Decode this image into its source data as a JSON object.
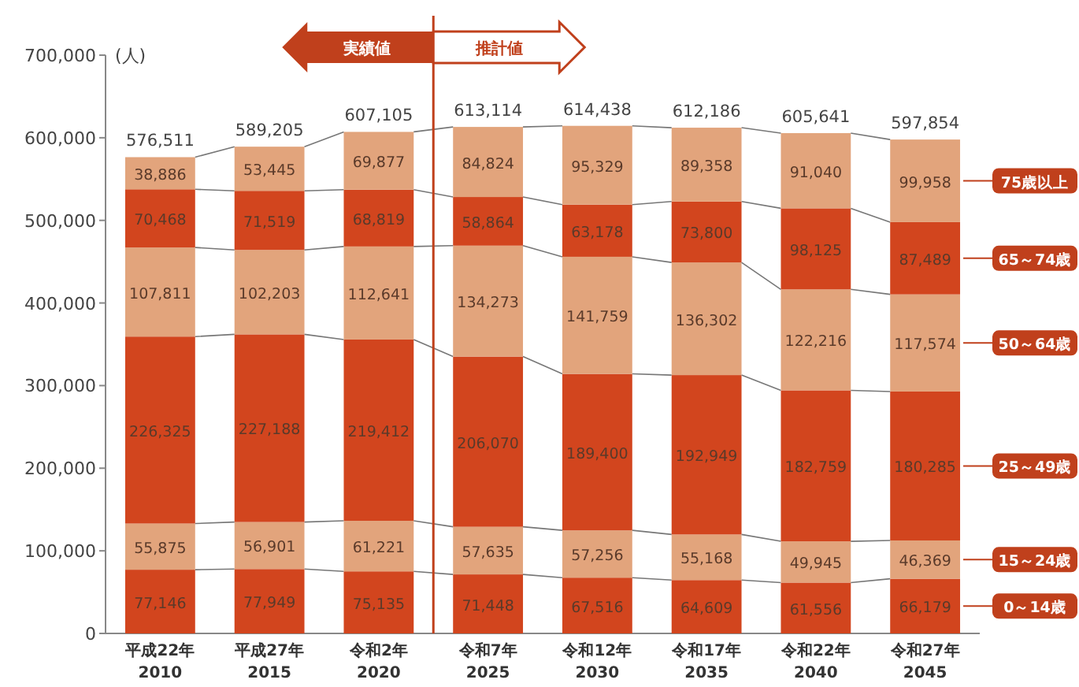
{
  "chart_data": {
    "type": "bar",
    "stacked": true,
    "ylabel": "(人)",
    "categories": [
      "平成22年\n2010",
      "平成27年\n2015",
      "令和2年\n2020",
      "令和7年\n2025",
      "令和12年\n2030",
      "令和17年\n2035",
      "令和22年\n2040",
      "令和27年\n2045"
    ],
    "series": [
      {
        "name": "0～14歳",
        "color": "#d2451e",
        "values": [
          77146,
          77949,
          75135,
          71448,
          67516,
          64609,
          61556,
          66179
        ],
        "value_labels": [
          "77,146",
          "77,949",
          "75,135",
          "71,448",
          "67,516",
          "64,609",
          "61,556",
          "66,179"
        ]
      },
      {
        "name": "15～24歳",
        "color": "#e2a47c",
        "values": [
          55875,
          56901,
          61221,
          57635,
          57256,
          55168,
          49945,
          46369
        ],
        "value_labels": [
          "55,875",
          "56,901",
          "61,221",
          "57,635",
          "57,256",
          "55,168",
          "49,945",
          "46,369"
        ]
      },
      {
        "name": "25～49歳",
        "color": "#d2451e",
        "values": [
          226325,
          227188,
          219412,
          206070,
          189400,
          192949,
          182759,
          180285
        ],
        "value_labels": [
          "226,325",
          "227,188",
          "219,412",
          "206,070",
          "189,400",
          "192,949",
          "182,759",
          "180,285"
        ]
      },
      {
        "name": "50～64歳",
        "color": "#e2a47c",
        "values": [
          107811,
          102203,
          112641,
          134273,
          141759,
          136302,
          122216,
          117574
        ],
        "value_labels": [
          "107,811",
          "102,203",
          "112,641",
          "134,273",
          "141,759",
          "136,302",
          "122,216",
          "117,574"
        ]
      },
      {
        "name": "65～74歳",
        "color": "#d2451e",
        "values": [
          70468,
          71519,
          68819,
          58864,
          63178,
          73800,
          98125,
          87489
        ],
        "value_labels": [
          "70,468",
          "71,519",
          "68,819",
          "58,864",
          "63,178",
          "73,800",
          "98,125",
          "87,489"
        ]
      },
      {
        "name": "75歳以上",
        "color": "#e2a47c",
        "values": [
          38886,
          53445,
          69877,
          84824,
          95329,
          89358,
          91040,
          99958
        ],
        "value_labels": [
          "38,886",
          "53,445",
          "69,877",
          "84,824",
          "95,329",
          "89,358",
          "91,040",
          "99,958"
        ]
      }
    ],
    "totals": [
      "576,511",
      "589,205",
      "607,105",
      "613,114",
      "614,438",
      "612,186",
      "605,641",
      "597,854"
    ],
    "ylim": [
      0,
      700000
    ],
    "yticks": [
      {
        "value": 0,
        "label": "0"
      },
      {
        "value": 100000,
        "label": "100,000"
      },
      {
        "value": 200000,
        "label": "200,000"
      },
      {
        "value": 300000,
        "label": "300,000"
      },
      {
        "value": 400000,
        "label": "400,000"
      },
      {
        "value": 500000,
        "label": "500,000"
      },
      {
        "value": 600000,
        "label": "600,000"
      },
      {
        "value": 700000,
        "label": "700,000"
      }
    ],
    "annotations": [
      "実績値",
      "推計値"
    ],
    "grid": false,
    "legend": "right"
  }
}
